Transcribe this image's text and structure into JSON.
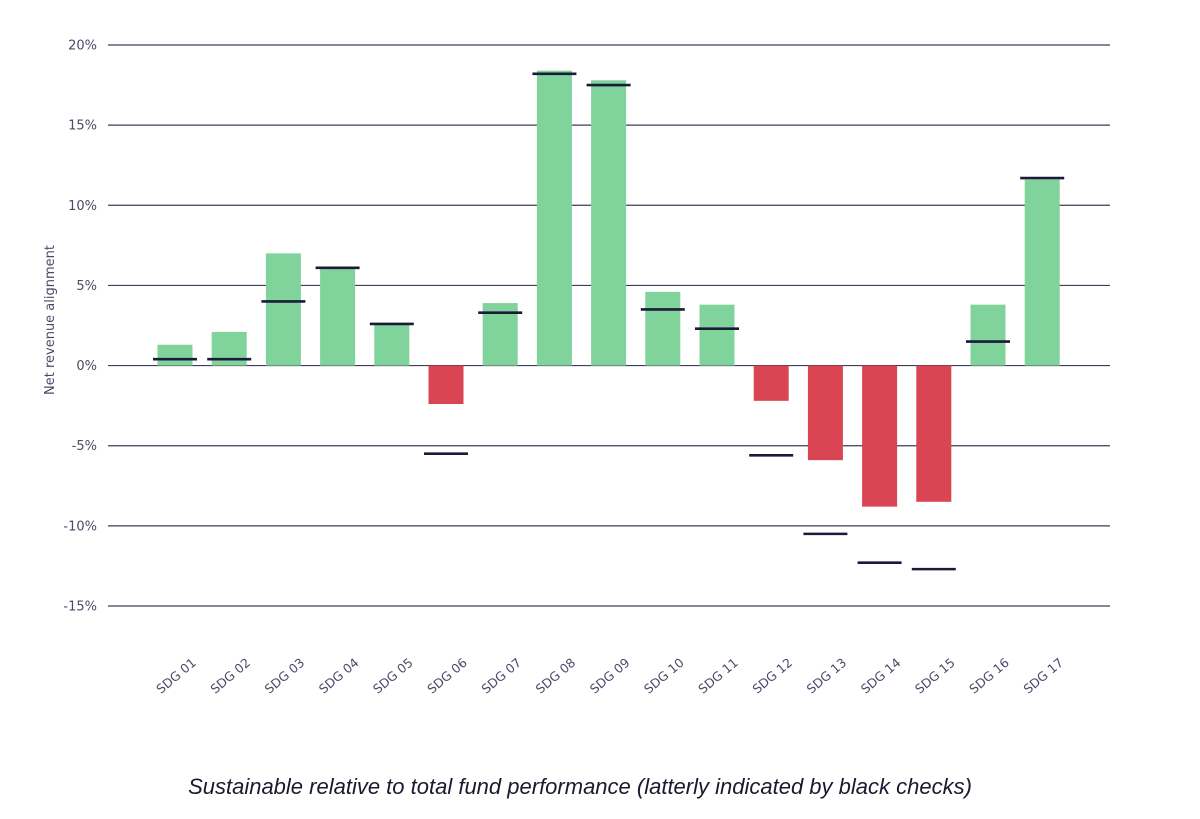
{
  "chart_data": {
    "type": "bar",
    "ylabel": "Net revenue alignment",
    "xlabel": "",
    "ylim": [
      -15,
      20
    ],
    "yticks": [
      20,
      15,
      10,
      5,
      0,
      -5,
      -10,
      -15
    ],
    "ytick_labels": [
      "20%",
      "15%",
      "10%",
      "5%",
      "0%",
      "-5%",
      "-10%",
      "-15%"
    ],
    "grid": true,
    "categories": [
      "SDG 01",
      "SDG 02",
      "SDG 03",
      "SDG 04",
      "SDG 05",
      "SDG 06",
      "SDG 07",
      "SDG 08",
      "SDG 09",
      "SDG 10",
      "SDG 11",
      "SDG 12",
      "SDG 13",
      "SDG 14",
      "SDG 15",
      "SDG 16",
      "SDG 17"
    ],
    "series": [
      {
        "values": [
          1.3,
          2.1,
          7.0,
          6.1,
          2.6,
          -2.4,
          3.9,
          18.4,
          17.8,
          4.6,
          3.8,
          -2.2,
          -5.9,
          -8.8,
          -8.5,
          3.8,
          11.6
        ]
      },
      {
        "marker": "check",
        "values": [
          0.4,
          0.4,
          4.0,
          6.1,
          2.6,
          -5.5,
          3.3,
          18.2,
          17.5,
          3.5,
          2.3,
          -5.6,
          -10.5,
          -12.3,
          -12.7,
          1.5,
          11.7
        ]
      }
    ],
    "colors": {
      "positive": "#80d39b",
      "negative": "#d94552",
      "check": "#1a1a3a",
      "grid": "#3d3d55",
      "text": "#4a4a6a"
    }
  },
  "caption": "Sustainable relative to total fund performance (latterly indicated by black checks)"
}
